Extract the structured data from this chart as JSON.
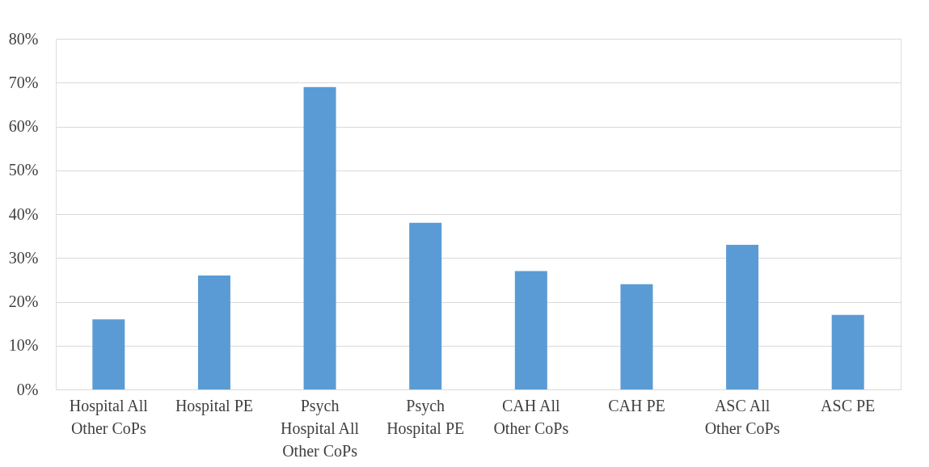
{
  "chart_data": {
    "type": "bar",
    "categories": [
      "Hospital All Other CoPs",
      "Hospital PE",
      "Psych Hospital All Other CoPs",
      "Psych Hospital PE",
      "CAH All Other CoPs",
      "CAH PE",
      "ASC All Other CoPs",
      "ASC PE"
    ],
    "values": [
      16,
      26,
      69,
      38,
      27,
      24,
      33,
      17
    ],
    "color": "#5b9bd5",
    "ylim": [
      0,
      80
    ],
    "yticks": [
      {
        "value": 0,
        "label": "0%"
      },
      {
        "value": 10,
        "label": "10%"
      },
      {
        "value": 20,
        "label": "20%"
      },
      {
        "value": 30,
        "label": "30%"
      },
      {
        "value": 40,
        "label": "40%"
      },
      {
        "value": 50,
        "label": "50%"
      },
      {
        "value": 60,
        "label": "60%"
      },
      {
        "value": 70,
        "label": "70%"
      },
      {
        "value": 80,
        "label": "80%"
      }
    ],
    "grid": "y"
  }
}
